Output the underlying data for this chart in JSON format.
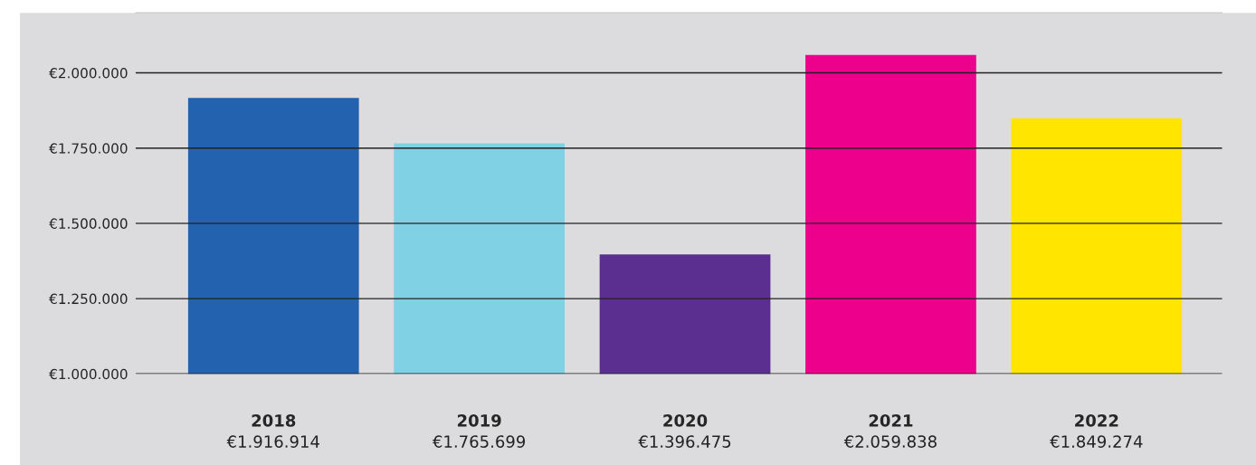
{
  "chart_data": {
    "type": "bar",
    "categories": [
      "2018",
      "2019",
      "2020",
      "2021",
      "2022"
    ],
    "values": [
      1916914,
      1765699,
      1396475,
      2059838,
      1849274
    ],
    "value_labels": [
      "€1.916.914",
      "€1.765.699",
      "€1.396.475",
      "€2.059.838",
      "€1.849.274"
    ],
    "colors": [
      "#2362ae",
      "#80d1e4",
      "#5b2f8f",
      "#ec008c",
      "#ffe500"
    ],
    "ylim": [
      1000000,
      2200000
    ],
    "yticks": [
      {
        "value": 1000000,
        "label": "€1.000.000"
      },
      {
        "value": 1250000,
        "label": "€1.250.000"
      },
      {
        "value": 1500000,
        "label": "€1.500.000"
      },
      {
        "value": 1750000,
        "label": "€1.750.000"
      },
      {
        "value": 2000000,
        "label": "€2.000.000"
      }
    ],
    "grid": "y",
    "legend": false
  }
}
